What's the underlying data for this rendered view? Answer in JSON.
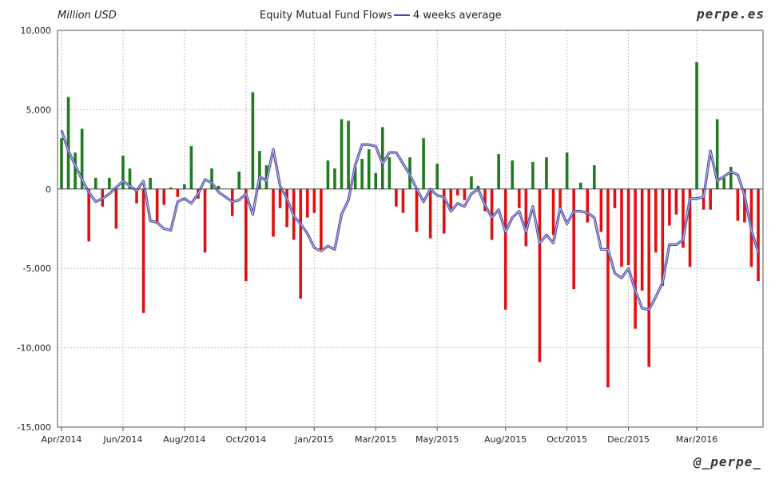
{
  "header": {
    "unit_label": "Million USD",
    "title": "Equity Mutual Fund Flows",
    "legend_line": "4 weeks average",
    "brand_top": "perpe.es",
    "brand_bottom": "@_perpe_"
  },
  "colors": {
    "positive": "#1e7b1e",
    "negative": "#e01010",
    "average": "#4a4aa0",
    "average_highlight": "#c8c8f0",
    "grid": "#bdbdbd"
  },
  "chart_data": {
    "type": "bar",
    "title": "Equity Mutual Fund Flows",
    "ylabel": "Million USD",
    "ylim": [
      -15000,
      10000
    ],
    "y_ticks": [
      10000,
      5000,
      0,
      -5000,
      -10000,
      -15000
    ],
    "y_tick_labels": [
      "10,000",
      "5,000",
      "0",
      "-5,000",
      "-10,000",
      "-15,000"
    ],
    "x_tick_labels": [
      "Apr/2014",
      "Jun/2014",
      "Aug/2014",
      "Oct/2014",
      "Jan/2015",
      "Mar/2015",
      "May/2015",
      "Aug/2015",
      "Oct/2015",
      "Dec/2015",
      "Mar/2016"
    ],
    "x_tick_week_index": [
      0,
      9,
      18,
      27,
      37,
      46,
      55,
      65,
      74,
      83,
      93
    ],
    "grid": true,
    "legend_placement": "top-center",
    "series": [
      {
        "name": "Equity Mutual Fund Flows",
        "kind": "bar",
        "values": [
          3200,
          5800,
          2300,
          3800,
          -3300,
          700,
          -1100,
          700,
          -2500,
          2100,
          1300,
          -900,
          -7800,
          700,
          -2200,
          -1000,
          100,
          -500,
          300,
          2700,
          -600,
          -4000,
          1300,
          200,
          0,
          -1700,
          1100,
          -5800,
          6100,
          2400,
          1500,
          -3000,
          -1200,
          -2400,
          -3200,
          -6900,
          -1800,
          -1500,
          -3900,
          1800,
          1300,
          4400,
          4300,
          1400,
          1900,
          2500,
          1000,
          3900,
          2000,
          -1100,
          -1500,
          2000,
          -2700,
          3200,
          -3100,
          1600,
          -2800,
          -1400,
          -400,
          -700,
          800,
          200,
          -1400,
          -3200,
          2200,
          -7600,
          1800,
          -1200,
          -3600,
          1700,
          -10900,
          2000,
          -2900,
          -1300,
          2300,
          -6300,
          400,
          -2100,
          1500,
          -2700,
          -12500,
          -1200,
          -4900,
          -4800,
          -8800,
          -6400,
          -11200,
          -4000,
          -6100,
          -2300,
          -1600,
          -3700,
          -4900,
          8000,
          -1300,
          -1300,
          4400,
          700,
          1400,
          -2000,
          -2100,
          -4900,
          -5800
        ]
      },
      {
        "name": "4 weeks average",
        "kind": "line",
        "values": [
          3700,
          2400,
          1500,
          600,
          -200,
          -800,
          -600,
          -300,
          100,
          500,
          200,
          -100,
          500,
          -2000,
          -2100,
          -2500,
          -2600,
          -800,
          -600,
          -900,
          -300,
          600,
          400,
          -200,
          -500,
          -800,
          -700,
          -300,
          -1600,
          800,
          500,
          2500,
          200,
          -600,
          -1700,
          -2200,
          -2800,
          -3700,
          -3900,
          -3600,
          -3800,
          -1600,
          -700,
          1500,
          2800,
          2800,
          2700,
          1600,
          2300,
          2300,
          1600,
          900,
          0,
          -800,
          0,
          -400,
          -500,
          -1400,
          -900,
          -1100,
          -300,
          0,
          -1000,
          -1800,
          -1300,
          -2700,
          -1800,
          -1400,
          -2700,
          -1100,
          -3400,
          -2900,
          -3400,
          -1200,
          -2200,
          -1400,
          -1400,
          -1500,
          -1800,
          -3800,
          -3800,
          -5300,
          -5600,
          -5000,
          -6400,
          -7500,
          -7600,
          -6800,
          -5900,
          -3500,
          -3500,
          -3200,
          -600,
          -600,
          -500,
          2400,
          500,
          800,
          1100,
          900,
          -400,
          -2600,
          -4000
        ]
      }
    ]
  }
}
